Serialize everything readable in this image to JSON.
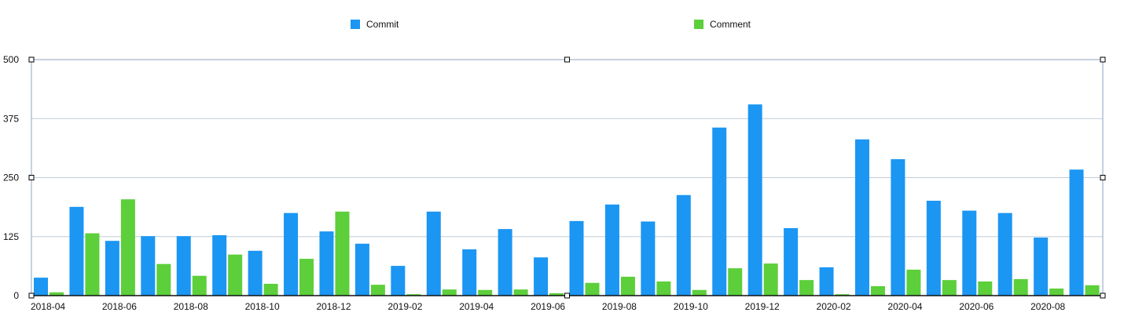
{
  "chart_data": {
    "type": "bar",
    "categories": [
      "2018-04",
      "2018-05",
      "2018-06",
      "2018-07",
      "2018-08",
      "2018-09",
      "2018-10",
      "2018-11",
      "2018-12",
      "2019-01",
      "2019-02",
      "2019-03",
      "2019-04",
      "2019-05",
      "2019-06",
      "2019-07",
      "2019-08",
      "2019-09",
      "2019-10",
      "2019-11",
      "2019-12",
      "2020-01",
      "2020-02",
      "2020-03",
      "2020-04",
      "2020-05",
      "2020-06",
      "2020-07",
      "2020-08",
      "2020-09"
    ],
    "x_tick_labels": [
      "2018-04",
      "2018-06",
      "2018-08",
      "2018-10",
      "2018-12",
      "2019-02",
      "2019-04",
      "2019-06",
      "2019-08",
      "2019-10",
      "2019-12",
      "2020-02",
      "2020-04",
      "2020-06",
      "2020-08"
    ],
    "series": [
      {
        "name": "Commit",
        "color": "#1b96f3",
        "values": [
          38,
          188,
          116,
          126,
          126,
          128,
          95,
          175,
          136,
          110,
          63,
          178,
          98,
          141,
          81,
          158,
          193,
          157,
          213,
          356,
          405,
          143,
          60,
          331,
          289,
          201,
          180,
          175,
          123,
          267
        ]
      },
      {
        "name": "Comment",
        "color": "#5ccf3b",
        "values": [
          7,
          132,
          204,
          67,
          42,
          87,
          25,
          78,
          178,
          23,
          3,
          13,
          12,
          13,
          5,
          27,
          40,
          30,
          12,
          58,
          68,
          33,
          3,
          20,
          55,
          33,
          30,
          35,
          15,
          22
        ]
      }
    ],
    "y_ticks": [
      0,
      125,
      250,
      375,
      500
    ],
    "ylim": [
      0,
      500
    ],
    "legend": "top"
  }
}
